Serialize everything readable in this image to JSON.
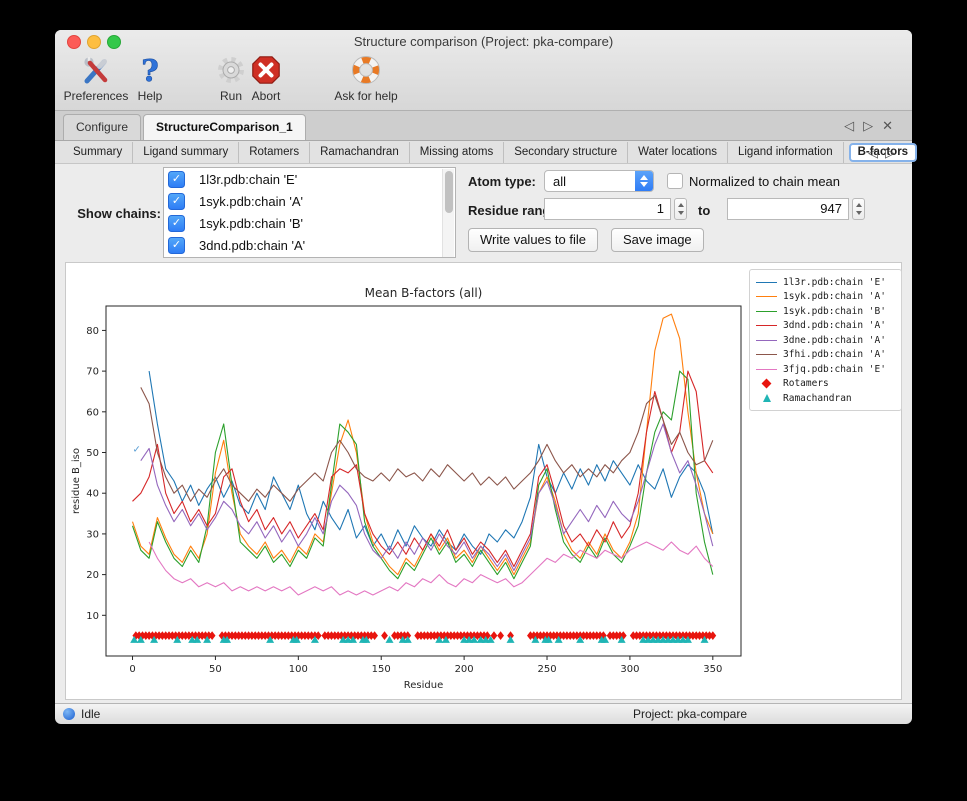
{
  "window": {
    "title": "Structure comparison (Project: pka-compare)"
  },
  "toolbar": {
    "items": [
      {
        "label": "Preferences",
        "icon": "tools-icon"
      },
      {
        "label": "Help",
        "icon": "help-icon"
      },
      {
        "label": "Run",
        "icon": "run-gear-icon"
      },
      {
        "label": "Abort",
        "icon": "abort-icon"
      },
      {
        "label": "Ask for help",
        "icon": "lifebuoy-icon"
      }
    ]
  },
  "tabs": {
    "items": [
      "Configure",
      "StructureComparison_1"
    ],
    "active": "StructureComparison_1",
    "nav": {
      "back": "◁",
      "forward": "▷",
      "close": "✕"
    }
  },
  "subtabs": {
    "items": [
      "Summary",
      "Ligand summary",
      "Rotamers",
      "Ramachandran",
      "Missing atoms",
      "Secondary structure",
      "Water locations",
      "Ligand information",
      "B-factors"
    ],
    "active": "B-factors",
    "nav": {
      "back": "◁",
      "forward": "▷"
    }
  },
  "controls": {
    "show_chains_label": "Show chains:",
    "chains": [
      {
        "label": "1l3r.pdb:chain 'E'",
        "checked": true
      },
      {
        "label": "1syk.pdb:chain 'A'",
        "checked": true
      },
      {
        "label": "1syk.pdb:chain 'B'",
        "checked": true
      },
      {
        "label": "3dnd.pdb:chain 'A'",
        "checked": true
      }
    ],
    "check_glyph": "✓",
    "atom_type_label": "Atom type:",
    "atom_type_value": "all",
    "normalized_label": "Normalized to chain mean",
    "normalized_checked": false,
    "residue_range_label": "Residue range:",
    "range_from": "1",
    "to_label": "to",
    "range_to": "947",
    "write_button": "Write values to file",
    "save_button": "Save image"
  },
  "chart_data": {
    "type": "line",
    "title": "Mean B-factors (all)",
    "xlabel": "Residue",
    "ylabel": "residue B_iso",
    "xlim": [
      -16,
      367
    ],
    "ylim": [
      0,
      86
    ],
    "xticks": [
      0,
      50,
      100,
      150,
      200,
      250,
      300,
      350
    ],
    "yticks": [
      10,
      20,
      30,
      40,
      50,
      60,
      70,
      80
    ],
    "grid": false,
    "legend_position": "top-right",
    "x_step": 5,
    "series": [
      {
        "name": "1l3r.pdb:chain 'E'",
        "color": "#1f77b4",
        "x_start": 10,
        "values": [
          70,
          57,
          46,
          43,
          38,
          42,
          37,
          41,
          44,
          39,
          43,
          37,
          35,
          40,
          36,
          44,
          40,
          36,
          42,
          35,
          31,
          38,
          34,
          31,
          36,
          29,
          32,
          27,
          30,
          26,
          31,
          27,
          32,
          29,
          27,
          31,
          28,
          26,
          30,
          27,
          25,
          30,
          28,
          31,
          29,
          33,
          39,
          52,
          44,
          40,
          45,
          41,
          46,
          42,
          47,
          43,
          48,
          45,
          42,
          47,
          43,
          41,
          46,
          39,
          44,
          47,
          45,
          40,
          30
        ]
      },
      {
        "name": "1syk.pdb:chain 'A'",
        "color": "#ff7f0e",
        "x_start": 0,
        "values": [
          33,
          27,
          25,
          34,
          29,
          25,
          23,
          27,
          24,
          30,
          45,
          53,
          40,
          30,
          27,
          25,
          28,
          24,
          26,
          23,
          27,
          25,
          30,
          28,
          40,
          52,
          58,
          50,
          35,
          28,
          25,
          22,
          20,
          24,
          22,
          26,
          30,
          26,
          29,
          24,
          26,
          23,
          27,
          24,
          21,
          24,
          20,
          24,
          28,
          40,
          44,
          38,
          30,
          26,
          24,
          28,
          25,
          30,
          26,
          24,
          28,
          35,
          55,
          75,
          83,
          84,
          78,
          60,
          45,
          35,
          30
        ]
      },
      {
        "name": "1syk.pdb:chain 'B'",
        "color": "#2ca02c",
        "x_start": 0,
        "values": [
          32,
          26,
          24,
          33,
          28,
          24,
          22,
          26,
          23,
          32,
          50,
          57,
          42,
          28,
          26,
          24,
          27,
          23,
          25,
          22,
          26,
          24,
          29,
          27,
          42,
          57,
          55,
          52,
          33,
          27,
          24,
          21,
          19,
          23,
          21,
          25,
          29,
          25,
          28,
          23,
          25,
          22,
          26,
          23,
          20,
          23,
          19,
          23,
          27,
          42,
          46,
          36,
          28,
          25,
          23,
          27,
          24,
          29,
          25,
          23,
          27,
          32,
          45,
          55,
          60,
          58,
          70,
          68,
          40,
          28,
          20
        ]
      },
      {
        "name": "3dnd.pdb:chain 'A'",
        "color": "#d62728",
        "x_start": 0,
        "values": [
          38,
          40,
          44,
          52,
          40,
          35,
          38,
          33,
          36,
          32,
          35,
          44,
          46,
          38,
          33,
          36,
          31,
          34,
          30,
          33,
          29,
          32,
          35,
          31,
          44,
          46,
          45,
          47,
          35,
          30,
          27,
          25,
          28,
          25,
          29,
          26,
          30,
          27,
          31,
          26,
          29,
          25,
          28,
          26,
          23,
          26,
          22,
          26,
          30,
          44,
          47,
          40,
          32,
          28,
          30,
          27,
          31,
          28,
          33,
          29,
          32,
          40,
          55,
          65,
          58,
          50,
          55,
          70,
          65,
          48,
          45
        ]
      },
      {
        "name": "3dne.pdb:chain 'A'",
        "color": "#9467bd",
        "x_start": 5,
        "values": [
          48,
          51,
          42,
          37,
          33,
          36,
          32,
          35,
          31,
          34,
          38,
          36,
          32,
          30,
          33,
          29,
          32,
          28,
          31,
          27,
          30,
          34,
          30,
          38,
          42,
          40,
          37,
          30,
          26,
          24,
          27,
          24,
          28,
          25,
          29,
          26,
          30,
          27,
          25,
          28,
          24,
          27,
          25,
          22,
          25,
          21,
          25,
          29,
          40,
          43,
          37,
          30,
          33,
          36,
          33,
          37,
          34,
          38,
          35,
          33,
          38,
          45,
          52,
          57,
          50,
          45,
          48,
          42,
          35,
          27
        ]
      },
      {
        "name": "3fhi.pdb:chain 'A'",
        "color": "#8c564b",
        "x_start": 5,
        "values": [
          66,
          62,
          50,
          44,
          40,
          42,
          38,
          41,
          39,
          43,
          46,
          42,
          40,
          38,
          41,
          39,
          42,
          40,
          38,
          41,
          43,
          45,
          43,
          50,
          53,
          50,
          46,
          44,
          43,
          45,
          43,
          46,
          44,
          45,
          43,
          46,
          44,
          47,
          45,
          43,
          45,
          42,
          44,
          42,
          44,
          41,
          43,
          45,
          48,
          52,
          48,
          45,
          47,
          44,
          46,
          44,
          47,
          45,
          48,
          50,
          55,
          62,
          64,
          58,
          52,
          55,
          50,
          47,
          48,
          53
        ]
      },
      {
        "name": "3fjq.pdb:chain 'E'",
        "color": "#e377c2",
        "x_start": 10,
        "values": [
          28,
          24,
          21,
          19,
          18,
          19,
          17,
          18,
          17,
          18,
          16,
          17,
          16,
          17,
          16,
          17,
          16,
          17,
          15,
          16,
          17,
          16,
          17,
          15,
          16,
          15,
          16,
          15,
          16,
          17,
          16,
          18,
          17,
          19,
          18,
          20,
          18,
          17,
          19,
          18,
          20,
          19,
          18,
          19,
          17,
          18,
          20,
          22,
          24,
          23,
          25,
          24,
          26,
          25,
          24,
          26,
          25,
          24,
          26,
          27,
          28,
          27,
          26,
          28,
          26,
          25,
          27,
          24,
          22
        ]
      }
    ],
    "markers": [
      {
        "name": "Rotamers",
        "shape": "diamond",
        "color": "#e8150e",
        "y": 5,
        "x": [
          2,
          4,
          6,
          8,
          10,
          12,
          14,
          16,
          18,
          20,
          22,
          24,
          26,
          28,
          30,
          32,
          34,
          36,
          38,
          40,
          42,
          44,
          46,
          48,
          54,
          56,
          58,
          60,
          62,
          64,
          66,
          68,
          70,
          72,
          74,
          76,
          78,
          80,
          82,
          84,
          86,
          88,
          90,
          92,
          94,
          96,
          98,
          100,
          102,
          104,
          106,
          108,
          110,
          112,
          116,
          118,
          120,
          122,
          124,
          126,
          128,
          130,
          132,
          134,
          136,
          138,
          140,
          142,
          144,
          146,
          152,
          158,
          160,
          162,
          164,
          166,
          172,
          174,
          176,
          178,
          180,
          182,
          184,
          186,
          188,
          190,
          192,
          194,
          196,
          198,
          200,
          202,
          204,
          206,
          208,
          210,
          212,
          214,
          218,
          222,
          228,
          240,
          242,
          244,
          246,
          248,
          250,
          252,
          254,
          256,
          258,
          260,
          262,
          264,
          266,
          268,
          270,
          272,
          274,
          276,
          278,
          280,
          282,
          284,
          288,
          290,
          292,
          294,
          296,
          302,
          304,
          306,
          308,
          310,
          312,
          314,
          316,
          318,
          320,
          322,
          324,
          326,
          328,
          330,
          332,
          334,
          336,
          338,
          340,
          342,
          344,
          346,
          348,
          350
        ]
      },
      {
        "name": "Ramachandran",
        "shape": "triangle",
        "color": "#20b5b5",
        "y": 4,
        "x": [
          1,
          5,
          13,
          27,
          36,
          39,
          45,
          55,
          57,
          83,
          97,
          99,
          110,
          127,
          130,
          133,
          139,
          141,
          155,
          163,
          166,
          185,
          189,
          200,
          203,
          206,
          210,
          213,
          216,
          228,
          243,
          249,
          251,
          257,
          270,
          283,
          285,
          295,
          308,
          311,
          314,
          317,
          320,
          323,
          326,
          329,
          332,
          335,
          345
        ]
      }
    ],
    "annotations": [
      {
        "text": "✓",
        "x": 0,
        "y": 50,
        "color": "#5b9fd4"
      }
    ]
  },
  "statusbar": {
    "status": "Idle",
    "project": "Project: pka-compare"
  }
}
